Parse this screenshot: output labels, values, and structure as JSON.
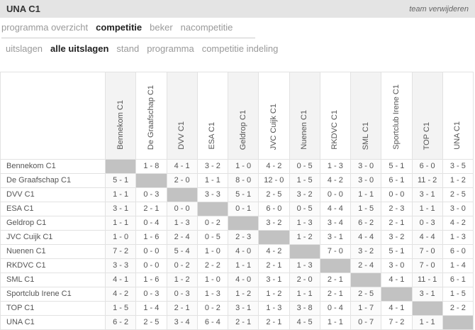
{
  "page": {
    "title": "UNA C1",
    "remove_team_label": "team verwijderen"
  },
  "tabs": {
    "items": [
      {
        "label": "programma overzicht",
        "active": false
      },
      {
        "label": "competitie",
        "active": true
      },
      {
        "label": "beker",
        "active": false
      },
      {
        "label": "nacompetitie",
        "active": false
      }
    ]
  },
  "subtabs": {
    "items": [
      {
        "label": "uitslagen",
        "active": false
      },
      {
        "label": "alle uitslagen",
        "active": true
      },
      {
        "label": "stand",
        "active": false
      },
      {
        "label": "programma",
        "active": false
      },
      {
        "label": "competitie indeling",
        "active": false
      }
    ]
  },
  "results": {
    "teams": [
      "Bennekom C1",
      "De Graafschap C1",
      "DVV C1",
      "ESA C1",
      "Geldrop C1",
      "JVC Cuijk C1",
      "Nuenen C1",
      "RKDVC C1",
      "SML C1",
      "Sportclub Irene C1",
      "TOP C1",
      "UNA C1"
    ],
    "matrix": [
      [
        null,
        "1 - 8",
        "4 - 1",
        "3 - 2",
        "1 - 0",
        "4 - 2",
        "0 - 5",
        "1 - 3",
        "3 - 0",
        "5 - 1",
        "6 - 0",
        "3 - 5"
      ],
      [
        "5 - 1",
        null,
        "2 - 0",
        "1 - 1",
        "8 - 0",
        "12 - 0",
        "1 - 5",
        "4 - 2",
        "3 - 0",
        "6 - 1",
        "11 - 2",
        "1 - 2"
      ],
      [
        "1 - 1",
        "0 - 3",
        null,
        "3 - 3",
        "5 - 1",
        "2 - 5",
        "3 - 2",
        "0 - 0",
        "1 - 1",
        "0 - 0",
        "3 - 1",
        "2 - 5"
      ],
      [
        "3 - 1",
        "2 - 1",
        "0 - 0",
        null,
        "0 - 1",
        "6 - 0",
        "0 - 5",
        "4 - 4",
        "1 - 5",
        "2 - 3",
        "1 - 1",
        "3 - 0"
      ],
      [
        "1 - 1",
        "0 - 4",
        "1 - 3",
        "0 - 2",
        null,
        "3 - 2",
        "1 - 3",
        "3 - 4",
        "6 - 2",
        "2 - 1",
        "0 - 3",
        "4 - 2"
      ],
      [
        "1 - 0",
        "1 - 6",
        "2 - 4",
        "0 - 5",
        "2 - 3",
        null,
        "1 - 2",
        "3 - 1",
        "4 - 4",
        "3 - 2",
        "4 - 4",
        "1 - 3"
      ],
      [
        "7 - 2",
        "0 - 0",
        "5 - 4",
        "1 - 0",
        "4 - 0",
        "4 - 2",
        null,
        "7 - 0",
        "3 - 2",
        "5 - 1",
        "7 - 0",
        "6 - 0"
      ],
      [
        "3 - 3",
        "0 - 0",
        "0 - 2",
        "2 - 2",
        "1 - 1",
        "2 - 1",
        "1 - 3",
        null,
        "2 - 4",
        "3 - 0",
        "7 - 0",
        "1 - 4"
      ],
      [
        "4 - 1",
        "1 - 6",
        "1 - 2",
        "1 - 0",
        "4 - 0",
        "3 - 1",
        "2 - 0",
        "2 - 1",
        null,
        "4 - 1",
        "11 - 1",
        "6 - 1"
      ],
      [
        "4 - 2",
        "0 - 3",
        "0 - 3",
        "1 - 3",
        "1 - 2",
        "1 - 2",
        "1 - 1",
        "2 - 1",
        "2 - 5",
        null,
        "3 - 1",
        "1 - 5"
      ],
      [
        "1 - 5",
        "1 - 4",
        "2 - 1",
        "0 - 2",
        "3 - 1",
        "1 - 3",
        "3 - 8",
        "0 - 4",
        "1 - 7",
        "4 - 1",
        null,
        "2 - 2"
      ],
      [
        "6 - 2",
        "2 - 5",
        "3 - 4",
        "6 - 4",
        "2 - 1",
        "2 - 1",
        "4 - 5",
        "1 - 1",
        "0 - 7",
        "7 - 2",
        "1 - 1",
        null
      ]
    ]
  },
  "colors": {
    "titlebar_bg": "#e4e4e4",
    "diagonal_cell": "#c2c2c2",
    "active_tab_text": "#222222",
    "inactive_tab_text": "#999999"
  }
}
